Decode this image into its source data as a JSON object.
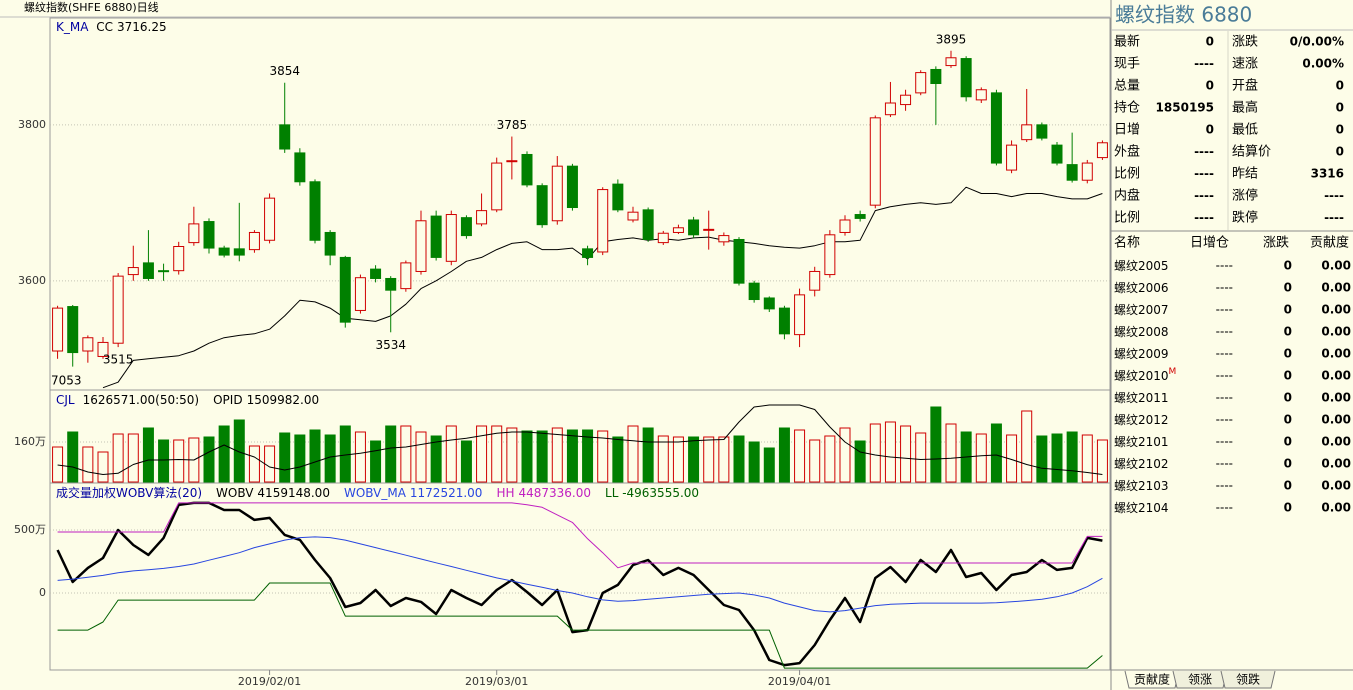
{
  "header": {
    "title": "螺纹指数(SHFE 6880)日线"
  },
  "chart_data": [
    {
      "type": "candlestick",
      "indicator": "K_MA",
      "ma_name": "CC",
      "ma_readout": "3716.25",
      "corner_label": "7053",
      "open": [
        3510,
        3567,
        3510,
        3503,
        3520,
        3608,
        3623,
        3613,
        3613,
        3649,
        3676,
        3642,
        3641,
        3640,
        3652,
        3800,
        3764,
        3727,
        3662,
        3630,
        3562,
        3615,
        3603,
        3590,
        3612,
        3683,
        3625,
        3681,
        3673,
        3691,
        3753,
        3762,
        3722,
        3677,
        3747,
        3641,
        3637,
        3724,
        3678,
        3691,
        3649,
        3662,
        3678,
        3665,
        3650,
        3653,
        3597,
        3578,
        3565,
        3531,
        3588,
        3608,
        3662,
        3685,
        3697,
        3813,
        3826,
        3841,
        3871,
        3876,
        3885,
        3832,
        3841,
        3742,
        3781,
        3800,
        3774,
        3749,
        3729,
        3758
      ],
      "high": [
        3568,
        3569,
        3530,
        3528,
        3610,
        3645,
        3665,
        3622,
        3650,
        3695,
        3680,
        3645,
        3700,
        3665,
        3712,
        3854,
        3770,
        3730,
        3665,
        3632,
        3608,
        3620,
        3606,
        3626,
        3690,
        3690,
        3690,
        3684,
        3712,
        3758,
        3785,
        3766,
        3725,
        3760,
        3750,
        3645,
        3720,
        3730,
        3695,
        3694,
        3664,
        3672,
        3682,
        3690,
        3662,
        3656,
        3600,
        3580,
        3568,
        3590,
        3618,
        3665,
        3684,
        3690,
        3812,
        3855,
        3845,
        3870,
        3875,
        3895,
        3888,
        3848,
        3845,
        3780,
        3846,
        3803,
        3778,
        3790,
        3755,
        3780
      ],
      "low": [
        3500,
        3490,
        3495,
        3500,
        3515,
        3600,
        3600,
        3600,
        3608,
        3645,
        3635,
        3630,
        3625,
        3636,
        3648,
        3764,
        3722,
        3648,
        3620,
        3540,
        3558,
        3598,
        3534,
        3586,
        3608,
        3626,
        3620,
        3654,
        3670,
        3688,
        3730,
        3720,
        3668,
        3672,
        3690,
        3620,
        3633,
        3688,
        3675,
        3650,
        3646,
        3660,
        3655,
        3640,
        3645,
        3594,
        3572,
        3560,
        3525,
        3515,
        3580,
        3604,
        3658,
        3676,
        3693,
        3810,
        3818,
        3838,
        3800,
        3873,
        3830,
        3828,
        3748,
        3738,
        3778,
        3780,
        3748,
        3726,
        3725,
        3755
      ],
      "close": [
        3565,
        3508,
        3527,
        3521,
        3606,
        3617,
        3603,
        3612,
        3644,
        3673,
        3642,
        3633,
        3633,
        3662,
        3706,
        3769,
        3727,
        3652,
        3633,
        3547,
        3604,
        3603,
        3588,
        3623,
        3677,
        3630,
        3685,
        3658,
        3690,
        3751,
        3754,
        3723,
        3672,
        3747,
        3694,
        3630,
        3717,
        3691,
        3688,
        3653,
        3661,
        3668,
        3659,
        3666,
        3658,
        3597,
        3576,
        3564,
        3532,
        3582,
        3612,
        3659,
        3678,
        3680,
        3809,
        3828,
        3838,
        3867,
        3853,
        3886,
        3836,
        3845,
        3751,
        3774,
        3800,
        3783,
        3751,
        3729,
        3751,
        3777
      ],
      "ma": [
        null,
        null,
        null,
        3463,
        3470,
        3498,
        3500,
        3502,
        3504,
        3510,
        3520,
        3527,
        3530,
        3532,
        3538,
        3555,
        3575,
        3573,
        3565,
        3552,
        3550,
        3548,
        3555,
        3570,
        3590,
        3600,
        3612,
        3625,
        3630,
        3640,
        3648,
        3650,
        3640,
        3640,
        3642,
        3628,
        3650,
        3653,
        3655,
        3652,
        3654,
        3652,
        3655,
        3656,
        3652,
        3650,
        3648,
        3645,
        3643,
        3642,
        3645,
        3650,
        3650,
        3652,
        3690,
        3695,
        3698,
        3700,
        3698,
        3700,
        3720,
        3712,
        3712,
        3708,
        3712,
        3712,
        3708,
        3705,
        3705,
        3712
      ],
      "up_color": "#d00000",
      "down_color": "#008000",
      "ma_color": "#000000",
      "ylim": [
        3460,
        3937
      ],
      "yticks": [
        3600,
        3800
      ],
      "grid": true,
      "annotations": [
        3854,
        3785,
        3895,
        3534,
        3515
      ]
    },
    {
      "type": "bar",
      "indicator": "CJL",
      "readout": "1626571.00(50:50)",
      "line_name": "OPID",
      "line_readout": "1509982.00",
      "values": [
        140,
        200,
        140,
        120,
        192,
        192,
        216,
        168,
        168,
        176,
        180,
        224,
        248,
        144,
        144,
        196,
        188,
        208,
        188,
        224,
        200,
        164,
        224,
        224,
        200,
        184,
        224,
        164,
        224,
        224,
        216,
        204,
        204,
        216,
        208,
        208,
        204,
        180,
        224,
        216,
        184,
        180,
        180,
        180,
        180,
        184,
        160,
        136,
        216,
        208,
        168,
        184,
        216,
        164,
        232,
        240,
        224,
        196,
        300,
        232,
        200,
        192,
        232,
        188,
        284,
        184,
        192,
        200,
        188,
        168
      ],
      "line": [
        68,
        60,
        40,
        30,
        35,
        70,
        88,
        88,
        90,
        88,
        120,
        148,
        120,
        100,
        60,
        48,
        60,
        80,
        100,
        108,
        115,
        125,
        136,
        140,
        150,
        160,
        168,
        175,
        185,
        195,
        200,
        200,
        195,
        190,
        185,
        180,
        176,
        170,
        165,
        160,
        160,
        160,
        165,
        168,
        170,
        240,
        300,
        308,
        308,
        308,
        290,
        220,
        160,
        120,
        108,
        100,
        95,
        90,
        92,
        95,
        100,
        105,
        108,
        90,
        70,
        55,
        50,
        45,
        38,
        30
      ],
      "line_color": "#000000",
      "ylim": [
        0,
        360
      ],
      "yticks": [
        {
          "value": 160,
          "label": "160万"
        }
      ],
      "grid": true
    },
    {
      "type": "line",
      "title": "成交量加权WOBV算法(20)",
      "ylim": [
        -611,
        857
      ],
      "yticks": [
        {
          "value": 500,
          "label": "500万"
        },
        0
      ],
      "grid": true,
      "series": [
        {
          "name": "WOBV",
          "readout": "4159148.00",
          "color": "#000000",
          "values": [
            341,
            87,
            199,
            278,
            500,
            381,
            302,
            437,
            699,
            715,
            715,
            659,
            659,
            580,
            596,
            461,
            421,
            262,
            119,
            -111,
            -79,
            24,
            -103,
            -40,
            -71,
            -167,
            24,
            -40,
            -95,
            24,
            103,
            8,
            -95,
            24,
            -310,
            -294,
            0,
            64,
            222,
            262,
            143,
            199,
            143,
            24,
            -95,
            -135,
            -294,
            -532,
            -572,
            -556,
            -413,
            -214,
            -40,
            -230,
            119,
            206,
            87,
            262,
            167,
            341,
            127,
            159,
            24,
            143,
            167,
            262,
            183,
            199,
            437,
            416
          ]
        },
        {
          "name": "WOBV_MA",
          "readout": "1172521.00",
          "color": "#2846e0",
          "values": [
            100,
            110,
            125,
            140,
            160,
            175,
            185,
            195,
            210,
            230,
            260,
            290,
            320,
            360,
            390,
            420,
            440,
            445,
            440,
            420,
            390,
            360,
            330,
            300,
            270,
            240,
            210,
            180,
            150,
            120,
            95,
            70,
            45,
            20,
            0,
            -30,
            -55,
            -65,
            -60,
            -50,
            -40,
            -30,
            -20,
            -10,
            -5,
            0,
            -15,
            -40,
            -80,
            -110,
            -140,
            -150,
            -140,
            -120,
            -100,
            -90,
            -85,
            -80,
            -80,
            -80,
            -80,
            -80,
            -78,
            -70,
            -60,
            -50,
            -30,
            0,
            50,
            117
          ]
        },
        {
          "name": "HH",
          "readout": "4487336.00",
          "color": "#c020c0",
          "values": [
            484,
            484,
            484,
            484,
            484,
            484,
            484,
            484,
            715,
            715,
            715,
            715,
            715,
            715,
            715,
            715,
            715,
            715,
            715,
            715,
            715,
            715,
            715,
            715,
            715,
            715,
            715,
            715,
            715,
            715,
            715,
            700,
            680,
            620,
            560,
            430,
            320,
            200,
            238,
            238,
            238,
            238,
            238,
            238,
            238,
            238,
            238,
            238,
            238,
            238,
            238,
            238,
            238,
            238,
            238,
            238,
            238,
            238,
            238,
            238,
            238,
            238,
            238,
            238,
            238,
            238,
            238,
            238,
            449,
            449
          ]
        },
        {
          "name": "LL",
          "readout": "-4963555.00",
          "color": "#006000",
          "values": [
            -294,
            -294,
            -294,
            -230,
            -56,
            -56,
            -56,
            -56,
            -56,
            -56,
            -56,
            -56,
            -56,
            -56,
            79,
            79,
            79,
            79,
            79,
            -183,
            -183,
            -183,
            -183,
            -183,
            -183,
            -183,
            -183,
            -183,
            -183,
            -183,
            -183,
            -183,
            -183,
            -183,
            -294,
            -294,
            -294,
            -294,
            -294,
            -294,
            -294,
            -294,
            -294,
            -294,
            -294,
            -294,
            -294,
            -294,
            -596,
            -596,
            -596,
            -596,
            -596,
            -596,
            -596,
            -596,
            -596,
            -596,
            -596,
            -596,
            -596,
            -596,
            -596,
            -596,
            -596,
            -596,
            -596,
            -596,
            -596,
            -496
          ]
        }
      ],
      "categories": [
        null,
        null,
        null,
        null,
        null,
        null,
        null,
        null,
        null,
        null,
        null,
        null,
        null,
        null,
        "2019/02/01",
        null,
        null,
        null,
        null,
        null,
        null,
        null,
        null,
        null,
        null,
        null,
        null,
        null,
        null,
        "2019/03/01",
        null,
        null,
        null,
        null,
        null,
        null,
        null,
        null,
        null,
        null,
        null,
        null,
        null,
        null,
        null,
        null,
        null,
        null,
        null,
        "2019/04/01",
        null,
        null,
        null,
        null,
        null,
        null,
        null,
        null,
        null,
        null,
        null,
        null,
        null,
        null,
        null,
        null,
        null,
        null,
        null,
        null
      ]
    }
  ],
  "quote": {
    "title": "螺纹指数 6880",
    "rows": [
      [
        "最新",
        0,
        "涨跌",
        "0/0.00%"
      ],
      [
        "现手",
        "----",
        "速涨",
        "0.00%"
      ],
      [
        "总量",
        0,
        "开盘",
        0
      ],
      [
        "持仓",
        1850195,
        "最高",
        0
      ],
      [
        "日增",
        0,
        "最低",
        0
      ],
      [
        "外盘",
        "----",
        "结算价",
        0
      ],
      [
        "比例",
        "----",
        "昨结",
        3316
      ],
      [
        "内盘",
        "----",
        "涨停",
        "----"
      ],
      [
        "比例",
        "----",
        "跌停",
        "----"
      ]
    ]
  },
  "contracts": {
    "columns": [
      "名称",
      "日增仓",
      "涨跌",
      "贡献度"
    ],
    "rows": [
      {
        "name": "螺纹2005",
        "oi": "----",
        "change": 0,
        "share": "0.00"
      },
      {
        "name": "螺纹2006",
        "oi": "----",
        "change": 0,
        "share": "0.00"
      },
      {
        "name": "螺纹2007",
        "oi": "----",
        "change": 0,
        "share": "0.00"
      },
      {
        "name": "螺纹2008",
        "oi": "----",
        "change": 0,
        "share": "0.00"
      },
      {
        "name": "螺纹2009",
        "oi": "----",
        "change": 0,
        "share": "0.00"
      },
      {
        "name": "螺纹2010",
        "flag": "M",
        "oi": "----",
        "change": 0,
        "share": "0.00"
      },
      {
        "name": "螺纹2011",
        "oi": "----",
        "change": 0,
        "share": "0.00"
      },
      {
        "name": "螺纹2012",
        "oi": "----",
        "change": 0,
        "share": "0.00"
      },
      {
        "name": "螺纹2101",
        "oi": "----",
        "change": 0,
        "share": "0.00"
      },
      {
        "name": "螺纹2102",
        "oi": "----",
        "change": 0,
        "share": "0.00"
      },
      {
        "name": "螺纹2103",
        "oi": "----",
        "change": 0,
        "share": "0.00"
      },
      {
        "name": "螺纹2104",
        "oi": "----",
        "change": 0,
        "share": "0.00"
      }
    ]
  },
  "tabs": [
    "贡献度",
    "领涨",
    "领跌"
  ]
}
